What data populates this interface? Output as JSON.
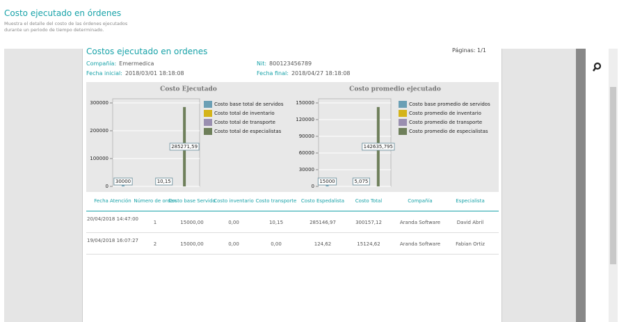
{
  "header": {
    "title": "Costo ejecutado en órdenes",
    "description": [
      "Muestra el detalle del costo de las órdenes ejecutados",
      "durante un periodo de tiempo determinado."
    ]
  },
  "report": {
    "title": "Costos ejecutado en ordenes",
    "pages": "Páginas:  1/1",
    "fields": [
      {
        "label": "Compañía:",
        "value": "Emermedica"
      },
      {
        "label": "Nit:",
        "value": "800123456789"
      },
      {
        "label": "Fecha inicial:",
        "value": "2018/03/01  18:18:08"
      },
      {
        "label": "Fecha final:",
        "value": "2018/04/27  18:18:08"
      }
    ]
  },
  "chart_data": [
    {
      "type": "bar",
      "title": "Costo Ejecutado",
      "ylim": [
        0,
        315000
      ],
      "yticks": [
        0,
        100000,
        200000,
        300000
      ],
      "grid": true,
      "legend": "right",
      "series": [
        {
          "name": "Costo base total de servidos",
          "color": "#6a9fb5",
          "values": [
            30000
          ]
        },
        {
          "name": "Costo total de inventario",
          "color": "#d4b41a",
          "values": [
            0
          ]
        },
        {
          "name": "Costo total de transporte",
          "color": "#9a8fb0",
          "values": [
            10.15
          ],
          "value_labels": [
            "10,15"
          ]
        },
        {
          "name": "Costo total de especialistas",
          "color": "#6e7f5a",
          "values": [
            285271.59
          ],
          "value_labels": [
            "285271,59"
          ]
        }
      ]
    },
    {
      "type": "bar",
      "title": "Costo promedio ejecutado",
      "ylim": [
        0,
        157500
      ],
      "yticks": [
        0,
        30000,
        60000,
        90000,
        120000,
        150000
      ],
      "grid": true,
      "legend": "right",
      "series": [
        {
          "name": "Costo base promedio de servidos",
          "color": "#6a9fb5",
          "values": [
            15000
          ]
        },
        {
          "name": "Costo promedio de inventario",
          "color": "#d4b41a",
          "values": [
            0
          ]
        },
        {
          "name": "Costo promedio de transporte",
          "color": "#9a8fb0",
          "values": [
            5.075
          ],
          "value_labels": [
            "5,075"
          ]
        },
        {
          "name": "Costo promedio de especialistas",
          "color": "#6e7f5a",
          "values": [
            142635.795
          ],
          "value_labels": [
            "142635,795"
          ]
        }
      ]
    }
  ],
  "table": {
    "columns": [
      "Fecha Atención",
      "Número de\norden",
      "Costo base\nServido",
      "Costo\ninventario",
      "Costo\ntransporte",
      "Costo Espedalista",
      "Costo Total",
      "Compañía",
      "Especialista"
    ],
    "rows": [
      [
        "20/04/2018\n14:47:00",
        "1",
        "15000,00",
        "0,00",
        "10,15",
        "285146,97",
        "300157,12",
        "Aranda Software",
        "David Abril"
      ],
      [
        "19/04/2018\n16:07:27",
        "2",
        "15000,00",
        "0,00",
        "0,00",
        "124,62",
        "15124,62",
        "Aranda Software",
        "Fabian Ortiz"
      ]
    ]
  }
}
